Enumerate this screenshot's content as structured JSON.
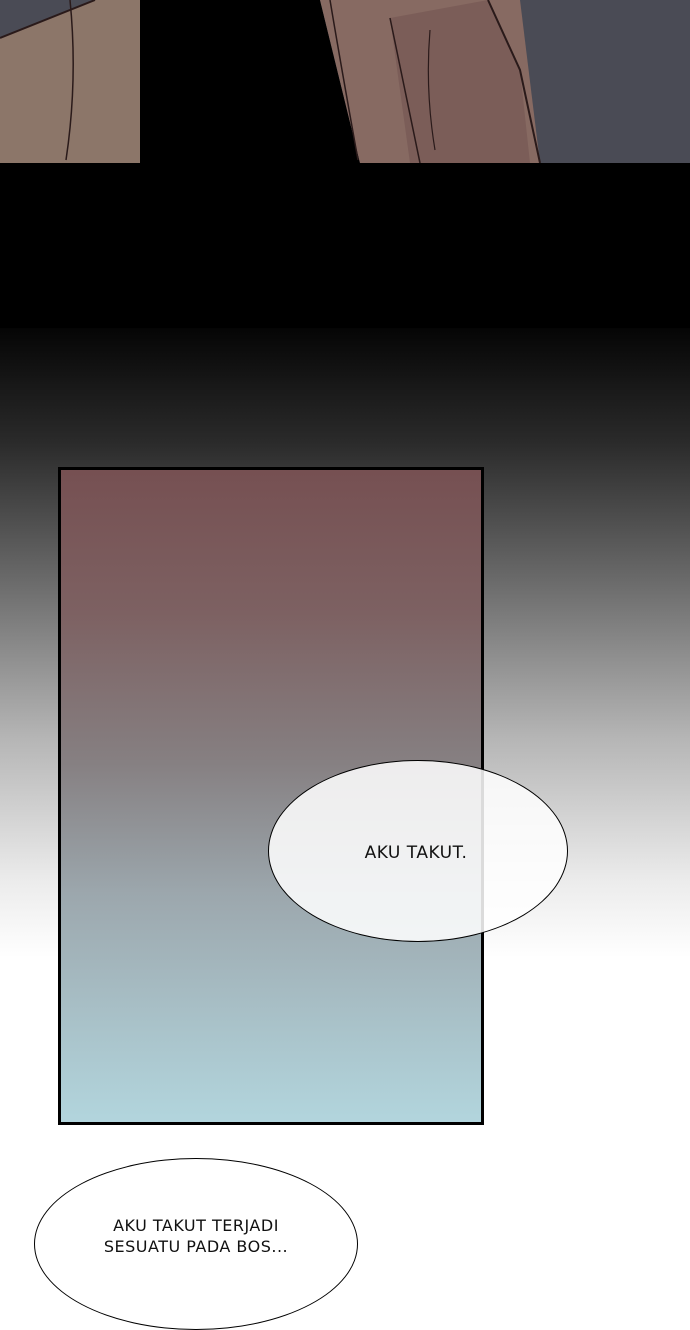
{
  "panels": [
    {
      "name": "top-panel",
      "colors": {
        "sky": "#4a4b55",
        "coat": "#8b7468",
        "shadow": "#000000"
      }
    },
    {
      "name": "gradient-panel",
      "colors": {
        "top": "#765052",
        "bottom": "#b2d5dd",
        "border": "#000000"
      }
    }
  ],
  "speech": {
    "bubble_1": "AKU TAKUT.",
    "bubble_2_line_1": "AKU TAKUT TERJADI",
    "bubble_2_line_2": "SESUATU PADA BOS..."
  }
}
